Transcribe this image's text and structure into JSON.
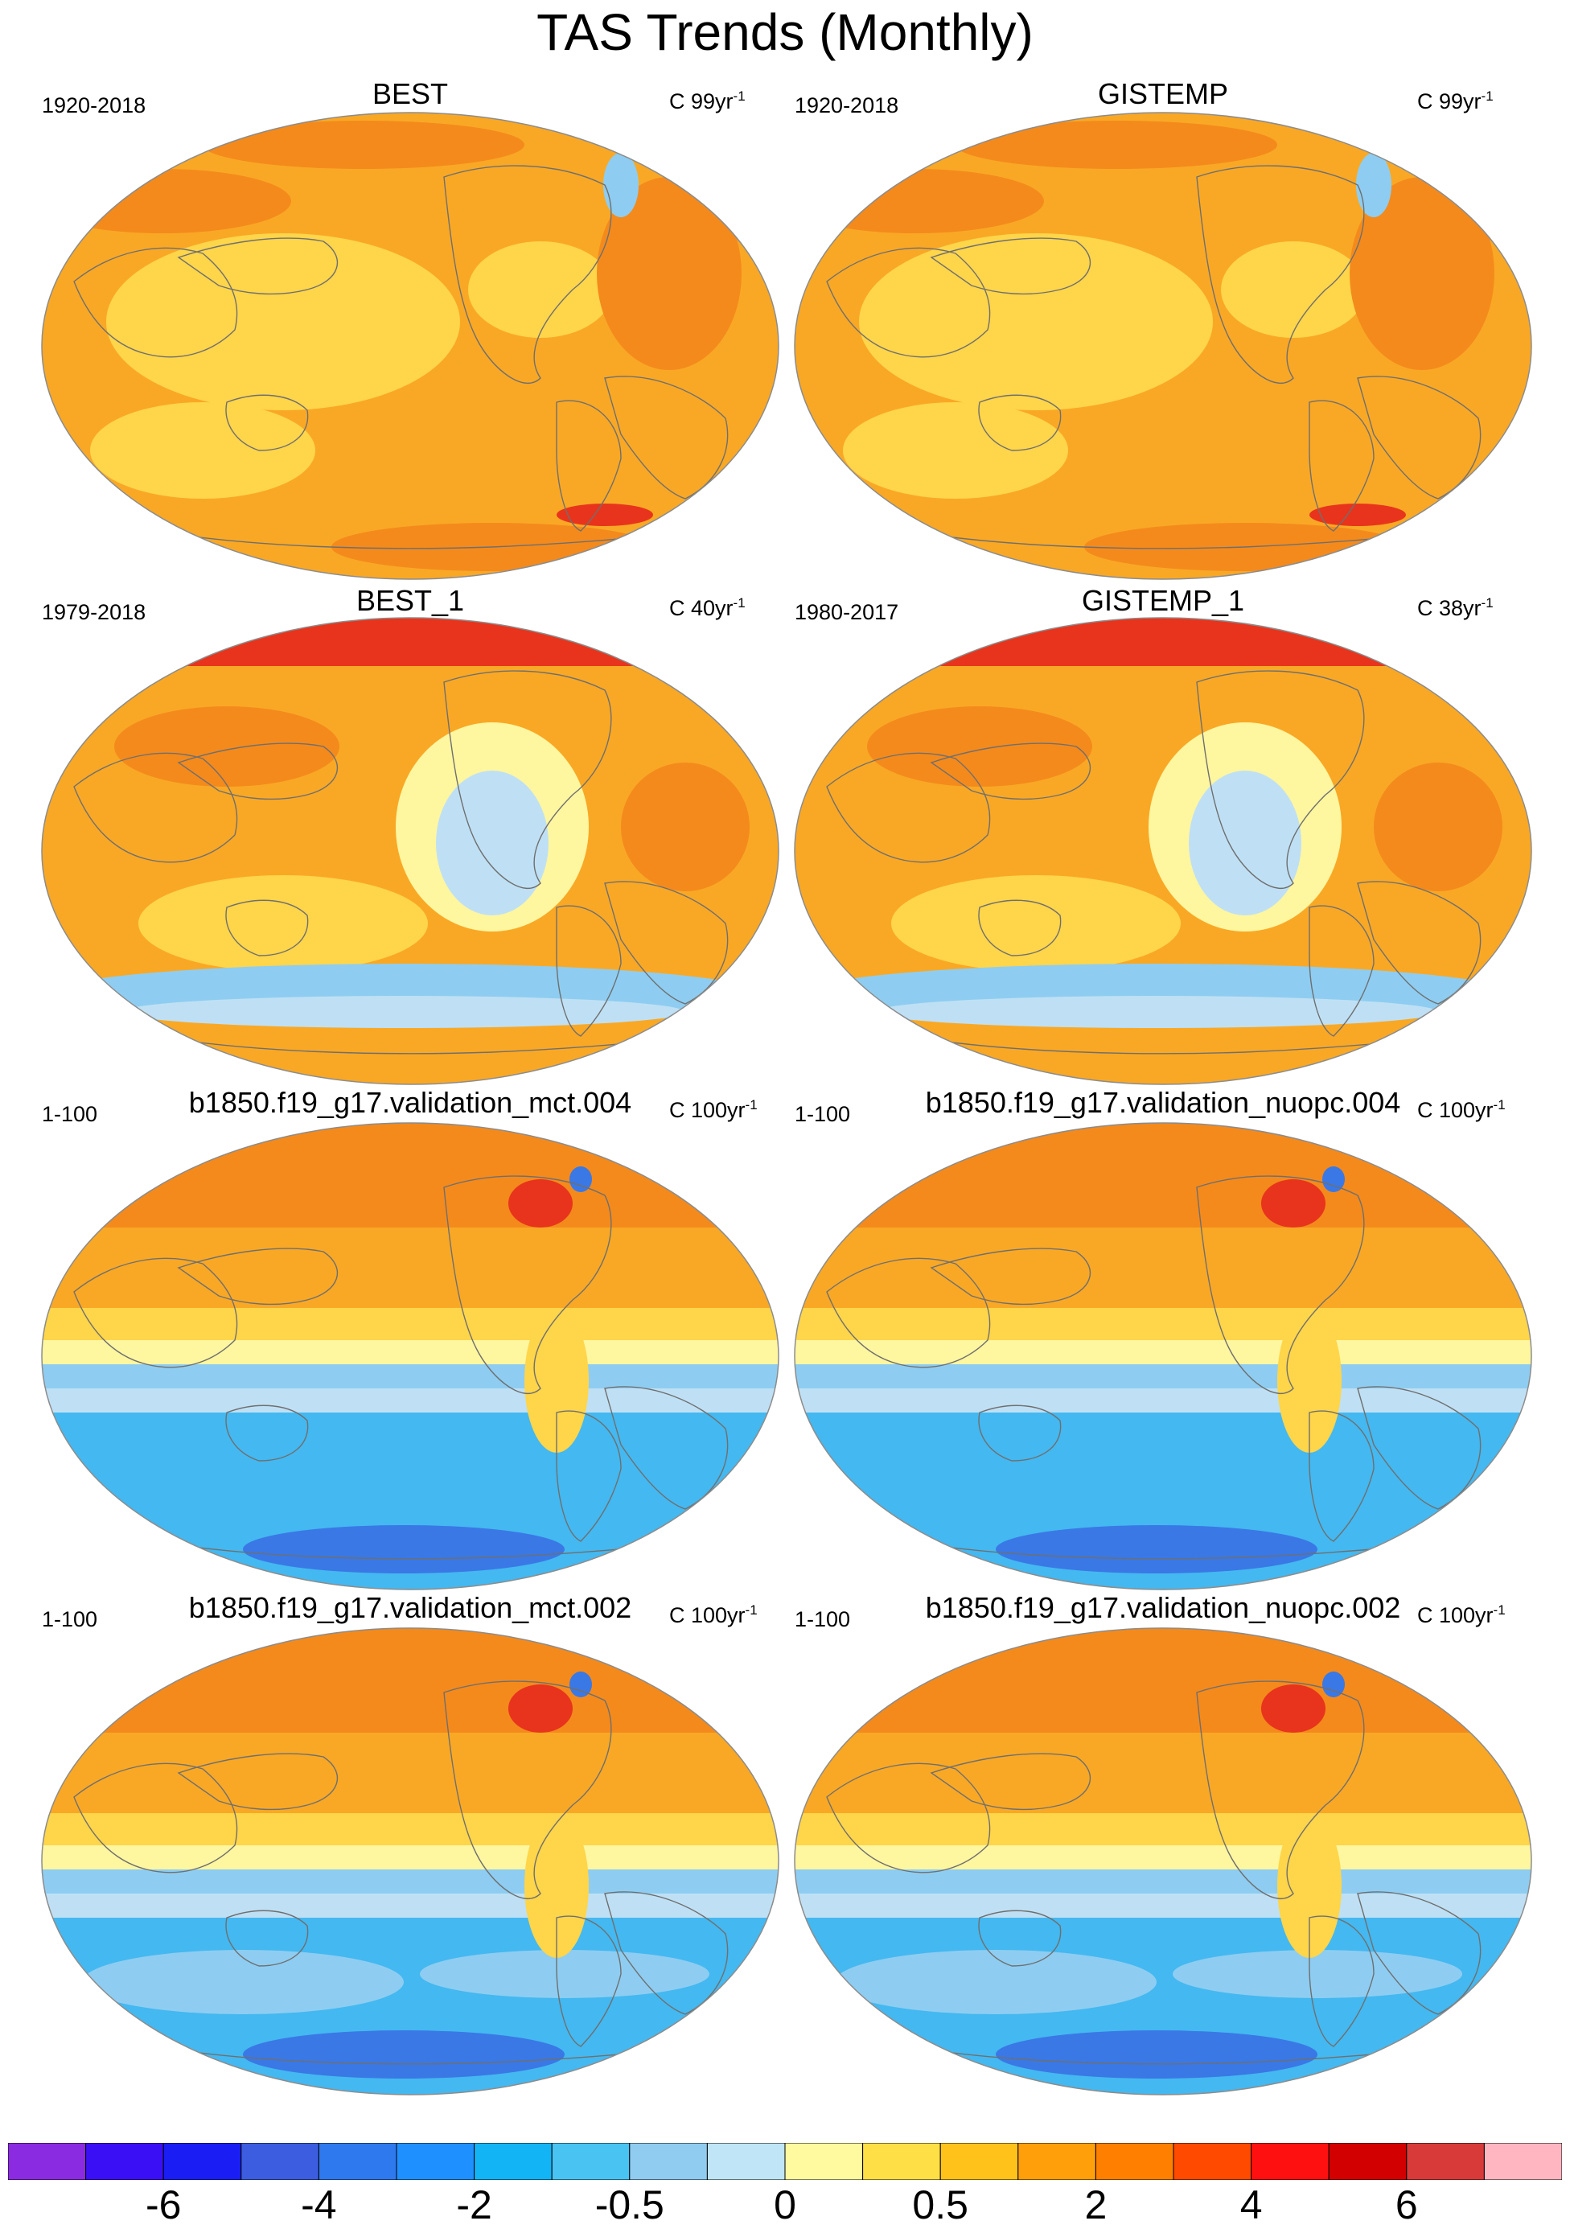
{
  "title": "TAS Trends (Monthly)",
  "units_prefix": "C ",
  "units_suffix": "yr",
  "units_exp": "-1",
  "panels": [
    {
      "title": "BEST",
      "period": "1920-2018",
      "units_value": "99",
      "style": "warm"
    },
    {
      "title": "GISTEMP",
      "period": "1920-2018",
      "units_value": "99",
      "style": "warm"
    },
    {
      "title": "BEST_1",
      "period": "1979-2018",
      "units_value": "40",
      "style": "recent"
    },
    {
      "title": "GISTEMP_1",
      "period": "1980-2017",
      "units_value": "38",
      "style": "recent"
    },
    {
      "title": "b1850.f19_g17.validation_mct.004",
      "period": "1-100",
      "units_value": "100",
      "style": "model"
    },
    {
      "title": "b1850.f19_g17.validation_nuopc.004",
      "period": "1-100",
      "units_value": "100",
      "style": "model"
    },
    {
      "title": "b1850.f19_g17.validation_mct.002",
      "period": "1-100",
      "units_value": "100",
      "style": "model2"
    },
    {
      "title": "b1850.f19_g17.validation_nuopc.002",
      "period": "1-100",
      "units_value": "100",
      "style": "model2"
    }
  ],
  "colorbar": {
    "colors": [
      "#8a2be2",
      "#3b0ff5",
      "#1a1ef4",
      "#3c5de0",
      "#2f79ee",
      "#1e90ff",
      "#12b4f5",
      "#48c3f2",
      "#8fccf0",
      "#bfe5f6",
      "#fffaa0",
      "#ffdf45",
      "#ffc21a",
      "#ff9f0a",
      "#ff8000",
      "#ff4a00",
      "#ff1010",
      "#d20000",
      "#d83a3a",
      "#ffb6c1"
    ],
    "labels": [
      "-6",
      "-4",
      "-2",
      "-0.5",
      "0",
      "0.5",
      "2",
      "4",
      "6"
    ]
  },
  "palette": {
    "orange": "#f9a825",
    "dark_orange": "#f48a1c",
    "red": "#e8341c",
    "yellow": "#ffd54a",
    "pale_yellow": "#fff6a0",
    "pale_blue": "#bfe0f4",
    "light_blue": "#8ecdf1",
    "blue": "#44b8f0",
    "deep_blue": "#3a78e6",
    "coast": "#6f6f6f"
  }
}
